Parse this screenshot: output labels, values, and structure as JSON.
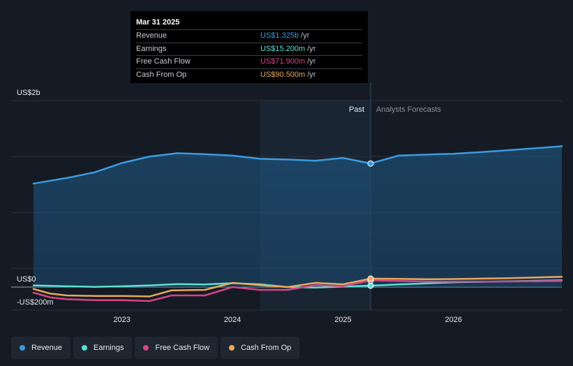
{
  "colors": {
    "revenue": "#3b9be0",
    "earnings": "#5ce0d0",
    "free_cash_flow": "#d5458a",
    "cash_from_op": "#e8a95a"
  },
  "tooltip": {
    "date": "Mar 31 2025",
    "rows": [
      {
        "label": "Revenue",
        "value": "US$1.325b",
        "unit": "/yr"
      },
      {
        "label": "Earnings",
        "value": "US$15.200m",
        "unit": "/yr"
      },
      {
        "label": "Free Cash Flow",
        "value": "US$71.900m",
        "unit": "/yr"
      },
      {
        "label": "Cash From Op",
        "value": "US$90.500m",
        "unit": "/yr"
      }
    ]
  },
  "legend": [
    {
      "label": "Revenue",
      "color": "#3b9be0"
    },
    {
      "label": "Earnings",
      "color": "#5ce0d0"
    },
    {
      "label": "Free Cash Flow",
      "color": "#d5458a"
    },
    {
      "label": "Cash From Op",
      "color": "#e8a95a"
    }
  ],
  "chart_data": {
    "type": "area",
    "title": "",
    "xlabel": "",
    "ylabel": "",
    "ylim": [
      -200,
      2000
    ],
    "xlim": [
      2022.2,
      2026.98
    ],
    "past_end": 2025.25,
    "forecast_start": 2024.25,
    "y_tick_labels": [
      {
        "value": 2000,
        "label": "US$2b"
      },
      {
        "value": 0,
        "label": "US$0"
      },
      {
        "value": -200,
        "label": "-US$200m"
      }
    ],
    "x_tick_labels": [
      {
        "value": 2023,
        "label": "2023"
      },
      {
        "value": 2024,
        "label": "2024"
      },
      {
        "value": 2025,
        "label": "2025"
      },
      {
        "value": 2026,
        "label": "2026"
      }
    ],
    "annotations": {
      "past": "Past",
      "forecast": "Analysts Forecasts"
    },
    "series": [
      {
        "name": "Revenue",
        "key": "revenue",
        "color": "#3b9be0",
        "fill": true,
        "x": [
          2022.2,
          2022.5,
          2022.75,
          2023.0,
          2023.25,
          2023.5,
          2023.75,
          2024.0,
          2024.25,
          2024.5,
          2024.75,
          2025.0,
          2025.25,
          2025.5,
          2025.75,
          2026.0,
          2026.25,
          2026.5,
          2026.98
        ],
        "values": [
          1110,
          1170,
          1230,
          1330,
          1400,
          1435,
          1425,
          1410,
          1375,
          1368,
          1355,
          1385,
          1325,
          1410,
          1420,
          1430,
          1448,
          1468,
          1510
        ]
      },
      {
        "name": "Earnings",
        "key": "earnings",
        "color": "#5ce0d0",
        "x": [
          2022.2,
          2022.5,
          2022.75,
          2023.0,
          2023.25,
          2023.5,
          2023.75,
          2024.0,
          2024.25,
          2024.5,
          2024.75,
          2025.0,
          2025.25,
          2025.5,
          2025.75,
          2026.0,
          2026.5,
          2026.98
        ],
        "values": [
          18,
          8,
          2,
          8,
          18,
          32,
          28,
          42,
          30,
          0,
          -5,
          5,
          15.2,
          28,
          40,
          52,
          62,
          72
        ]
      },
      {
        "name": "Free Cash Flow",
        "key": "free_cash_flow",
        "color": "#d5458a",
        "x": [
          2022.2,
          2022.35,
          2022.5,
          2022.75,
          2023.0,
          2023.25,
          2023.45,
          2023.75,
          2024.0,
          2024.25,
          2024.5,
          2024.75,
          2025.0,
          2025.25,
          2025.5,
          2025.75,
          2026.0,
          2026.5,
          2026.98
        ],
        "values": [
          -60,
          -110,
          -130,
          -140,
          -140,
          -150,
          -90,
          -90,
          0,
          -30,
          -30,
          20,
          10,
          71.9,
          65,
          60,
          58,
          60,
          65
        ]
      },
      {
        "name": "Cash From Op",
        "key": "cash_from_op",
        "color": "#e8a95a",
        "x": [
          2022.2,
          2022.35,
          2022.5,
          2022.75,
          2023.0,
          2023.25,
          2023.45,
          2023.75,
          2024.0,
          2024.25,
          2024.5,
          2024.75,
          2025.0,
          2025.25,
          2025.5,
          2025.75,
          2026.0,
          2026.5,
          2026.98
        ],
        "values": [
          -20,
          -70,
          -90,
          -95,
          -95,
          -100,
          -35,
          -30,
          45,
          20,
          0,
          45,
          30,
          90.5,
          88,
          85,
          86,
          95,
          110
        ]
      }
    ]
  }
}
